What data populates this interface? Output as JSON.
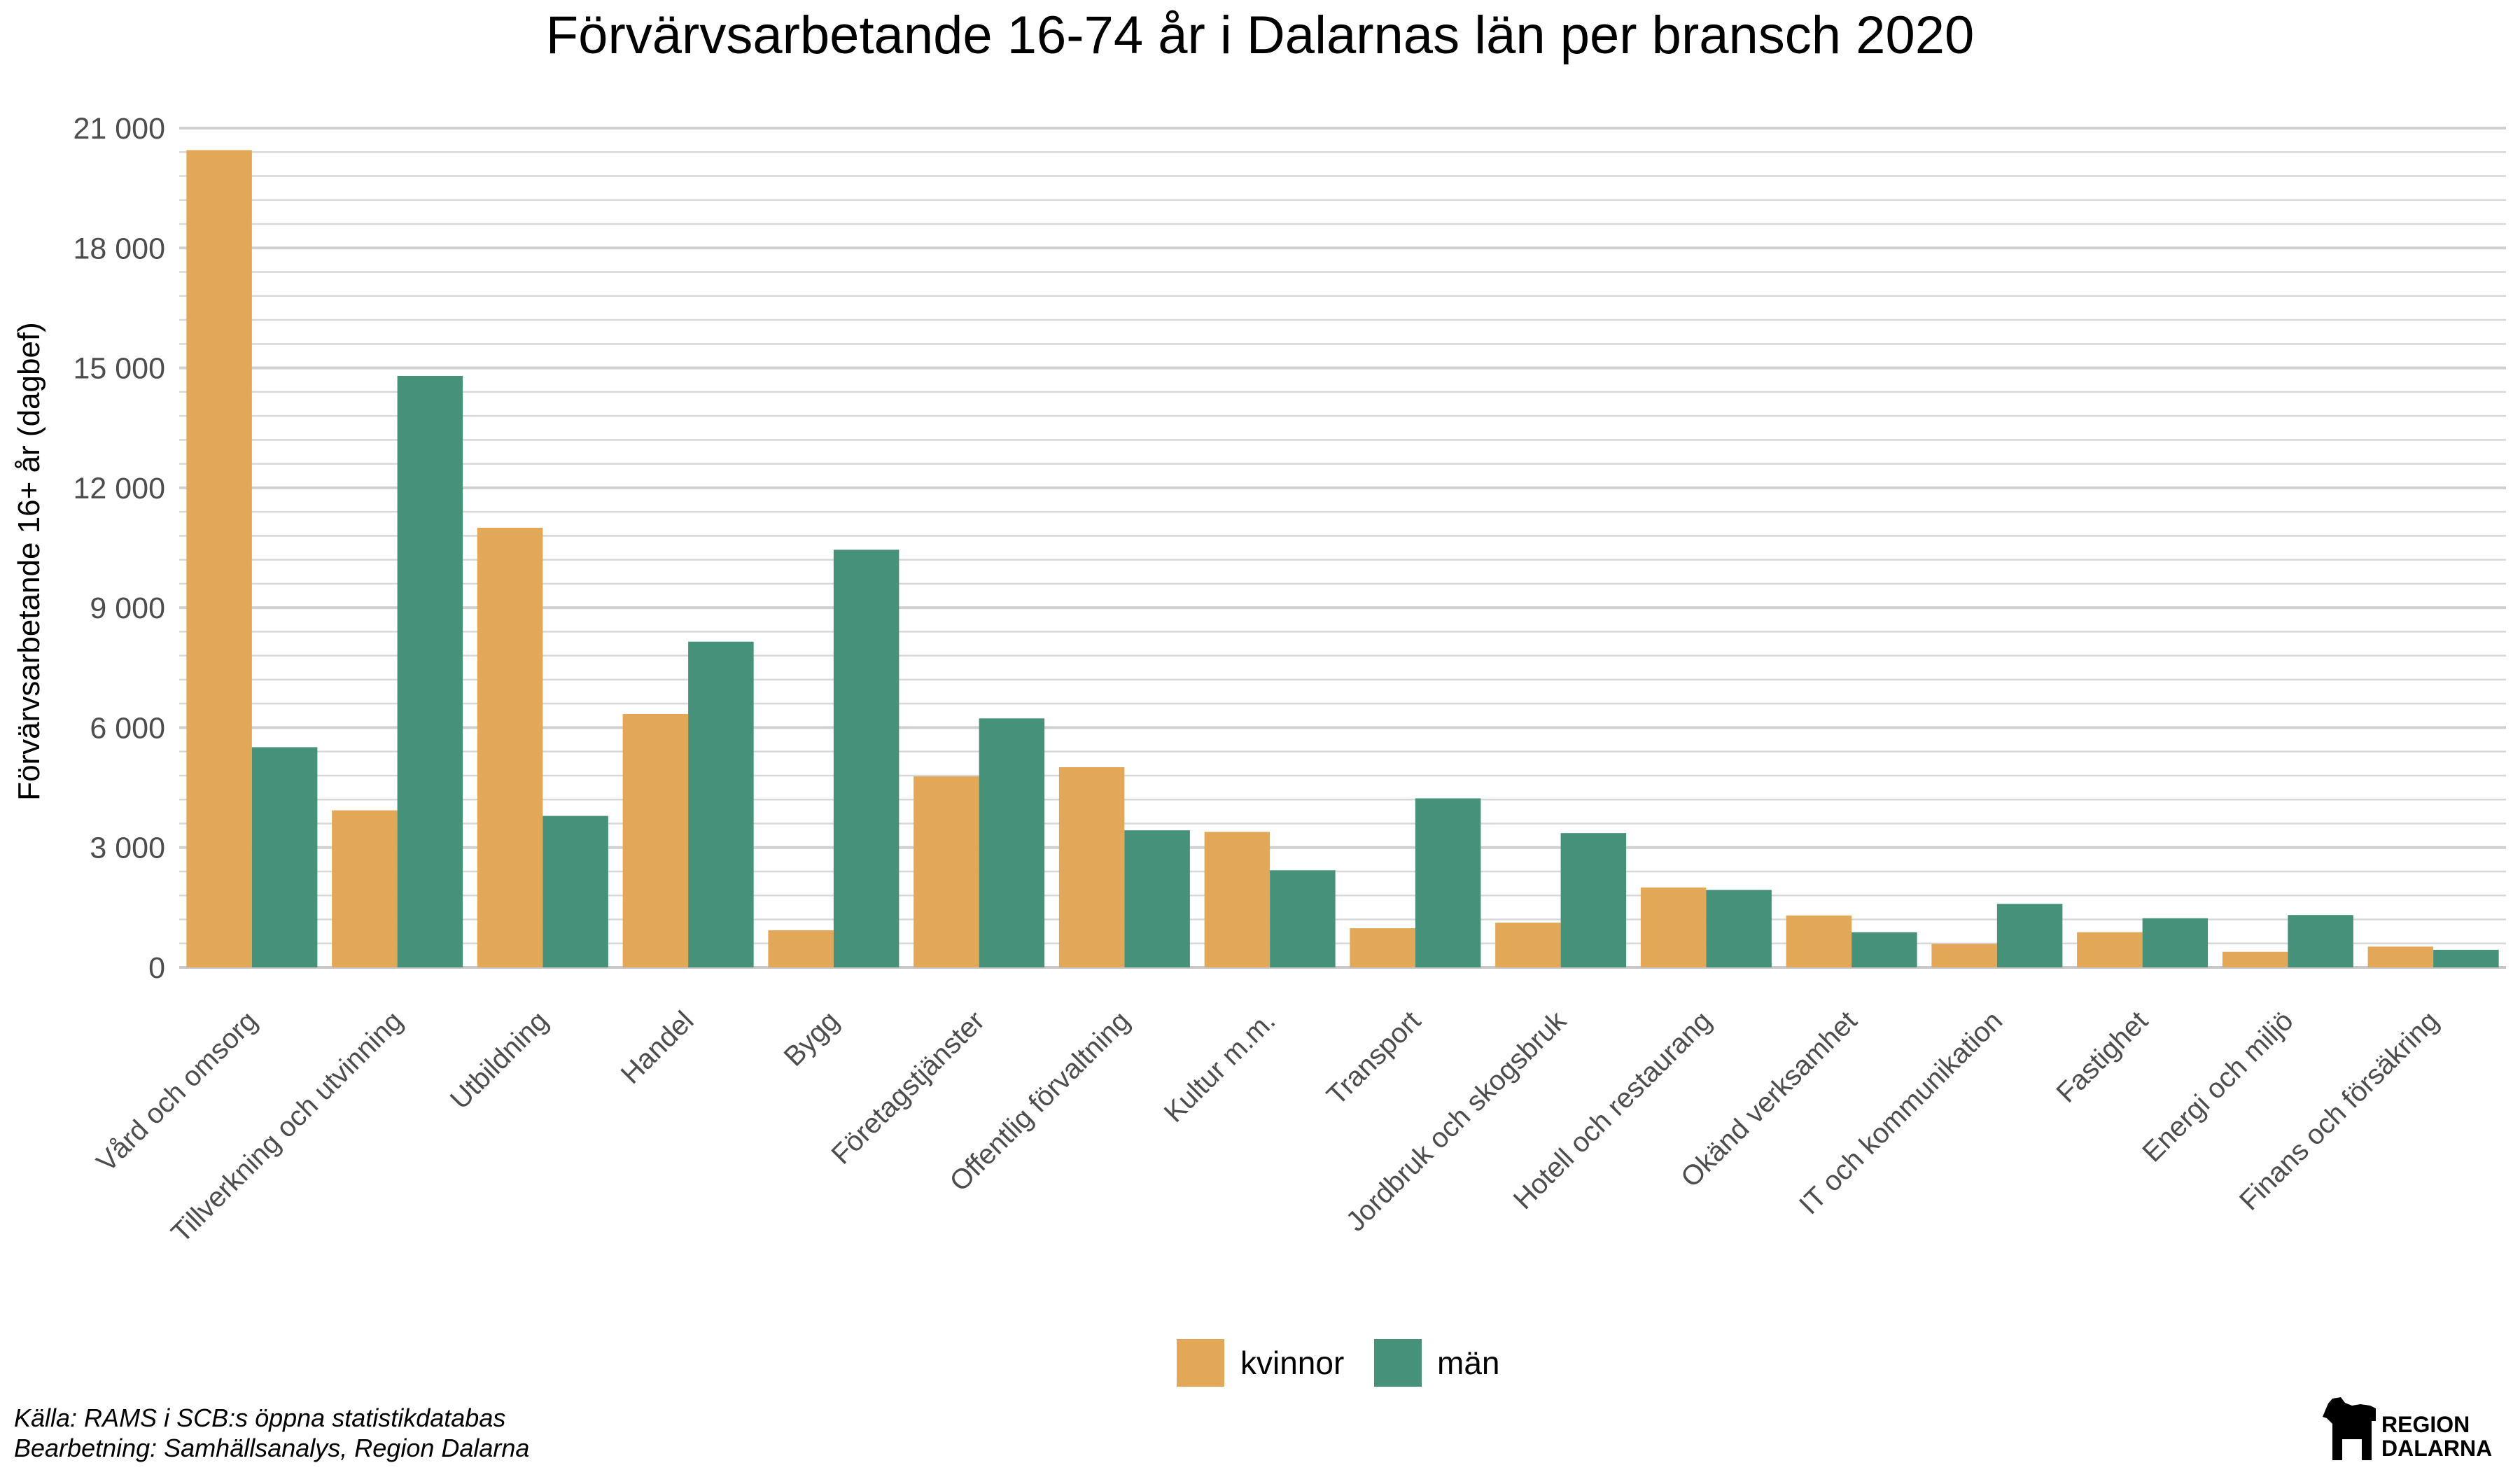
{
  "chart_data": {
    "type": "bar",
    "title": "Förvärvsarbetande 16-74 år i Dalarnas län per bransch 2020",
    "xlabel": "",
    "ylabel": "Förvärvsarbetande 16+ år (dagbef)",
    "ylim": [
      0,
      21000
    ],
    "yticks": [
      0,
      3000,
      6000,
      9000,
      12000,
      15000,
      18000,
      21000
    ],
    "ytick_labels": [
      "0",
      "3 000",
      "6 000",
      "9 000",
      "12 000",
      "15 000",
      "18 000",
      "21 000"
    ],
    "categories": [
      "Vård och omsorg",
      "Tillverkning och utvinning",
      "Utbildning",
      "Handel",
      "Bygg",
      "Företagstjänster",
      "Offentlig förvaltning",
      "Kultur m.m.",
      "Transport",
      "Jordbruk och skogsbruk",
      "Hotell och restaurang",
      "Okänd verksamhet",
      "IT och kommunikation",
      "Fastighet",
      "Energi och miljö",
      "Finans och försäkring"
    ],
    "series": [
      {
        "name": "kvinnor",
        "color": "#E3A857",
        "values": [
          20450,
          3930,
          11000,
          6340,
          930,
          4780,
          5010,
          3390,
          980,
          1120,
          2000,
          1300,
          590,
          880,
          390,
          520
        ]
      },
      {
        "name": "män",
        "color": "#45917A",
        "values": [
          5510,
          14800,
          3790,
          8150,
          10450,
          6230,
          3430,
          2430,
          4230,
          3360,
          1940,
          880,
          1590,
          1230,
          1310,
          440
        ]
      }
    ],
    "grid": true,
    "legend_position": "bottom"
  },
  "caption": {
    "line1": "Källa: RAMS i SCB:s öppna statistikdatabas",
    "line2": "Bearbetning: Samhällsanalys, Region Dalarna"
  },
  "logo": {
    "line1": "REGION",
    "line2": "DALARNA",
    "icon": "dala-horse-icon"
  }
}
